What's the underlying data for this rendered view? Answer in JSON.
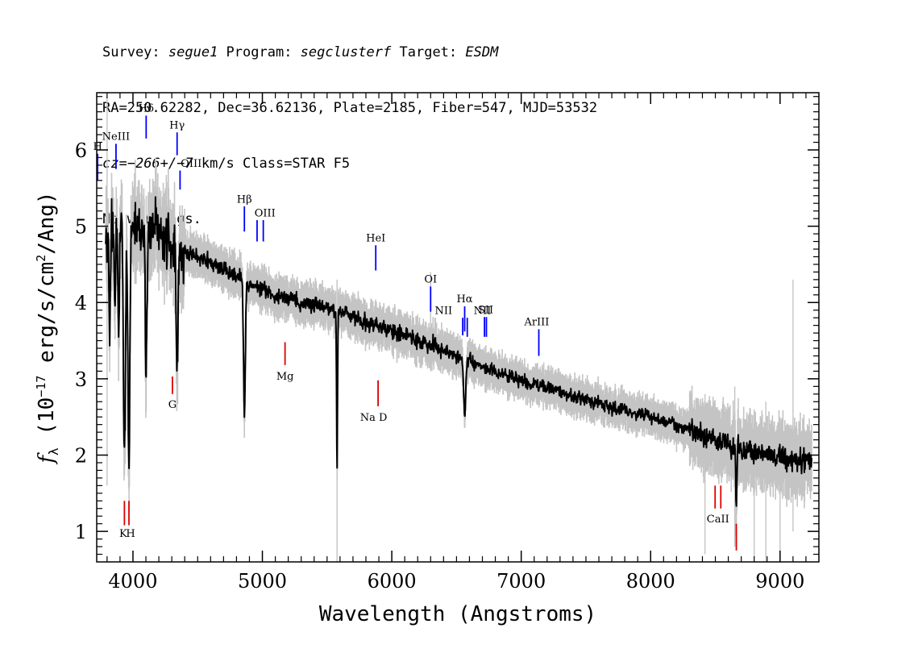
{
  "header": {
    "survey_label": "Survey: ",
    "survey": "segue1",
    "program_label": " Program: ",
    "program": "segclusterf",
    "target_label": " Target: ",
    "target": "ESDM",
    "line2": "RA=250.62282, Dec=36.62136, Plate=2185, Fiber=547, MJD=53532",
    "cz_label": "cz=",
    "cz_value": "−266+/−7",
    "cz_rest": " km/s Class=STAR F5",
    "line4": "No warnings."
  },
  "colors": {
    "flux": "#000000",
    "error_band": "#c4c4c4",
    "emission": "#0000ff",
    "absorption": "#dd0000"
  },
  "chart_data": {
    "type": "line",
    "xlabel": "Wavelength (Angstroms)",
    "ylabel_prefix": "f",
    "ylabel_sub": "λ",
    "ylabel_main": " (10",
    "ylabel_exp": "−17",
    "ylabel_mid": " erg/s/cm",
    "ylabel_exp2": "2",
    "ylabel_end": "/Ang)",
    "xlim": [
      3720,
      9300
    ],
    "ylim": [
      0.6,
      6.75
    ],
    "xticks": [
      4000,
      5000,
      6000,
      7000,
      8000,
      9000
    ],
    "xtick_labels": [
      "4000",
      "5000",
      "6000",
      "7000",
      "8000",
      "9000"
    ],
    "yticks": [
      1,
      2,
      3,
      4,
      5,
      6
    ],
    "ytick_labels": [
      "1",
      "2",
      "3",
      "4",
      "5",
      "6"
    ],
    "continuum": [
      [
        3800,
        4.8
      ],
      [
        3850,
        4.95
      ],
      [
        3900,
        5.0
      ],
      [
        4000,
        4.95
      ],
      [
        4100,
        4.95
      ],
      [
        4200,
        4.9
      ],
      [
        4300,
        4.75
      ],
      [
        4500,
        4.6
      ],
      [
        4700,
        4.42
      ],
      [
        4900,
        4.25
      ],
      [
        5100,
        4.08
      ],
      [
        5300,
        4.0
      ],
      [
        5500,
        3.93
      ],
      [
        5700,
        3.82
      ],
      [
        5900,
        3.68
      ],
      [
        6100,
        3.58
      ],
      [
        6300,
        3.43
      ],
      [
        6500,
        3.3
      ],
      [
        6700,
        3.15
      ],
      [
        6900,
        3.03
      ],
      [
        7100,
        2.93
      ],
      [
        7300,
        2.83
      ],
      [
        7500,
        2.72
      ],
      [
        7700,
        2.62
      ],
      [
        7900,
        2.55
      ],
      [
        8100,
        2.45
      ],
      [
        8300,
        2.33
      ],
      [
        8500,
        2.2
      ],
      [
        8700,
        2.08
      ],
      [
        8900,
        2.0
      ],
      [
        9100,
        1.92
      ],
      [
        9250,
        1.95
      ]
    ],
    "absorption_features": [
      {
        "x": 3820,
        "depth": 1.1,
        "width": 8
      },
      {
        "x": 3860,
        "depth": 0.9,
        "width": 6
      },
      {
        "x": 3890,
        "depth": 1.2,
        "width": 8
      },
      {
        "x": 3934,
        "depth": 3.2,
        "width": 10
      },
      {
        "x": 3969,
        "depth": 3.4,
        "width": 10
      },
      {
        "x": 4102,
        "depth": 1.8,
        "width": 10
      },
      {
        "x": 4341,
        "depth": 1.6,
        "width": 10
      },
      {
        "x": 4861,
        "depth": 1.7,
        "width": 10
      },
      {
        "x": 5577,
        "depth": 2.1,
        "width": 5
      },
      {
        "x": 6563,
        "depth": 0.8,
        "width": 10
      },
      {
        "x": 8662,
        "depth": 0.8,
        "width": 6
      }
    ],
    "error_spikes": [
      {
        "x": 3800,
        "top": 6.7,
        "bottom": 1.6
      },
      {
        "x": 4102,
        "top": 5.4,
        "bottom": 2.8
      },
      {
        "x": 5577,
        "top": 4.3,
        "bottom": 0.6
      },
      {
        "x": 6300,
        "top": 4.4,
        "bottom": 3.1
      },
      {
        "x": 8420,
        "top": 2.8,
        "bottom": 0.7
      },
      {
        "x": 8650,
        "top": 2.9,
        "bottom": 0.8
      },
      {
        "x": 8800,
        "top": 2.6,
        "bottom": 0.65
      },
      {
        "x": 8890,
        "top": 2.7,
        "bottom": 0.6
      },
      {
        "x": 9000,
        "top": 2.5,
        "bottom": 0.7
      },
      {
        "x": 9100,
        "top": 4.3,
        "bottom": 1.0
      }
    ],
    "emission_lines": [
      {
        "label": "H",
        "x": 3727,
        "y1": 5.6,
        "y2": 5.95,
        "lx": 3727,
        "ly": 6.0
      },
      {
        "label": "NeIII",
        "x": 3869,
        "y1": 5.75,
        "y2": 6.08,
        "lx": 3869,
        "ly": 6.13
      },
      {
        "label": "Hδ",
        "x": 4102,
        "y1": 6.15,
        "y2": 6.45,
        "lx": 4102,
        "ly": 6.5
      },
      {
        "label": "Hγ",
        "x": 4341,
        "y1": 5.93,
        "y2": 6.23,
        "lx": 4341,
        "ly": 6.28
      },
      {
        "label": "OIII",
        "x": 4364,
        "y1": 5.48,
        "y2": 5.73,
        "lx": 4450,
        "ly": 5.78
      },
      {
        "label": "Hβ",
        "x": 4861,
        "y1": 4.93,
        "y2": 5.26,
        "lx": 4861,
        "ly": 5.31
      },
      {
        "label": "OIII",
        "x": 4959,
        "y1": 4.8,
        "y2": 5.08,
        "lx": 5020,
        "ly": 5.13
      },
      {
        "label": "OIII",
        "x": 5007,
        "y1": 4.8,
        "y2": 5.08,
        "lx": 5020,
        "ly": 5.13
      },
      {
        "label": "HeI",
        "x": 5876,
        "y1": 4.42,
        "y2": 4.75,
        "lx": 5876,
        "ly": 4.8
      },
      {
        "label": "OI",
        "x": 6300,
        "y1": 3.88,
        "y2": 4.21,
        "lx": 6300,
        "ly": 4.26
      },
      {
        "label": "NII",
        "x": 6548,
        "y1": 3.57,
        "y2": 3.8,
        "lx": 6400,
        "ly": 3.85
      },
      {
        "label": "Hα",
        "x": 6563,
        "y1": 3.62,
        "y2": 3.95,
        "lx": 6563,
        "ly": 4.0
      },
      {
        "label": "NII",
        "x": 6583,
        "y1": 3.55,
        "y2": 3.8,
        "lx": 6700,
        "ly": 3.85
      },
      {
        "label": "SII",
        "x": 6716,
        "y1": 3.55,
        "y2": 3.81,
        "lx": 6725,
        "ly": 3.86
      },
      {
        "label": "SII",
        "x": 6731,
        "y1": 3.55,
        "y2": 3.81,
        "lx": 6725,
        "ly": 3.86
      },
      {
        "label": "ArIII",
        "x": 7136,
        "y1": 3.3,
        "y2": 3.65,
        "lx": 7120,
        "ly": 3.7
      }
    ],
    "absorption_lines": [
      {
        "label": "K",
        "x": 3934,
        "y1": 1.08,
        "y2": 1.4,
        "lx": 3925,
        "ly": 0.93
      },
      {
        "label": "H",
        "x": 3969,
        "y1": 1.08,
        "y2": 1.4,
        "lx": 3982,
        "ly": 0.93
      },
      {
        "label": "G",
        "x": 4305,
        "y1": 2.8,
        "y2": 3.03,
        "lx": 4305,
        "ly": 2.62
      },
      {
        "label": "Mg",
        "x": 5175,
        "y1": 3.18,
        "y2": 3.48,
        "lx": 5175,
        "ly": 2.99
      },
      {
        "label": "Na D",
        "x": 5894,
        "y1": 2.64,
        "y2": 2.98,
        "lx": 5860,
        "ly": 2.45
      },
      {
        "label": "CaII",
        "x": 8498,
        "y1": 1.3,
        "y2": 1.6,
        "lx": 8520,
        "ly": 1.12
      },
      {
        "label": "CaII",
        "x": 8542,
        "y1": 1.3,
        "y2": 1.6,
        "lx": 8520,
        "ly": 1.12
      },
      {
        "label": "CaII",
        "x": 8662,
        "y1": 0.75,
        "y2": 1.1,
        "lx": 8520,
        "ly": 1.12
      }
    ]
  }
}
